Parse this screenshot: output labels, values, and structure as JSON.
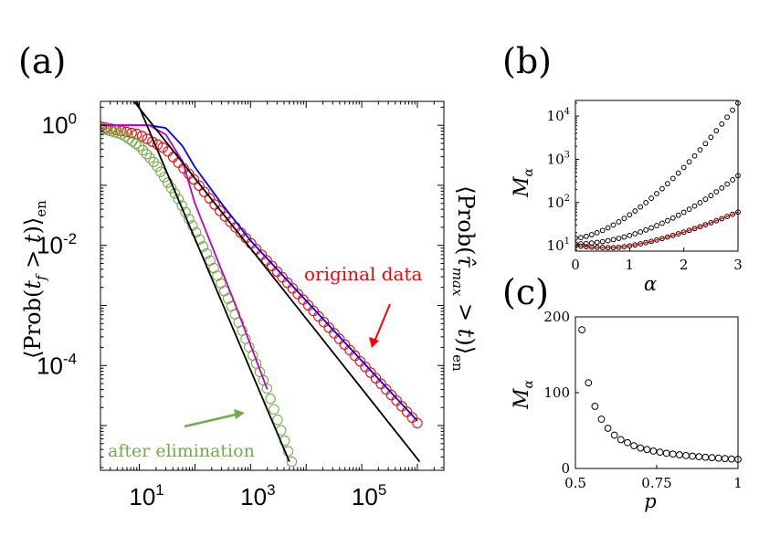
{
  "panels": {
    "a": "(a)",
    "b": "(b)",
    "c": "(c)"
  },
  "chart_data": [
    {
      "panel": "(a)",
      "type": "line",
      "xscale": "log",
      "yscale": "log",
      "xlim": [
        2,
        3000000
      ],
      "ylim": [
        1.8e-06,
        2.5
      ],
      "xticks": [
        10,
        1000,
        100000
      ],
      "xtick_labels": [
        {
          "base": "10",
          "exp": "1"
        },
        {
          "base": "10",
          "exp": "3"
        },
        {
          "base": "10",
          "exp": "5"
        }
      ],
      "yticks": [
        1,
        0.01,
        0.0001
      ],
      "ytick_labels": [
        {
          "base": "10",
          "exp": "0"
        },
        {
          "base": "10",
          "exp": "-2"
        },
        {
          "base": "10",
          "exp": "-4"
        }
      ],
      "ylabel_left": {
        "pre": "⟨Prob(",
        "var": "t",
        "sub": "f",
        "post": " > ",
        "var2": "t",
        "close": ")⟩",
        "subscript": "en"
      },
      "ylabel_right": {
        "pre": "⟨Prob(",
        "var": "τ̂",
        "sub": "max",
        "post": " > ",
        "var2": "t",
        "close": ")⟩",
        "subscript": "en"
      },
      "annotations": [
        {
          "text": "original data",
          "color": "#ff0000"
        },
        {
          "text": "after elimination",
          "color": "#70ad47"
        }
      ],
      "grid": false,
      "series": [
        {
          "style": "circles",
          "color": "#ff0000",
          "x_range": [
            2,
            1000000
          ],
          "count": 62,
          "y_curve": [
            [
              2,
              0.95
            ],
            [
              10,
              0.7
            ],
            [
              30,
              0.4
            ],
            [
              100,
              0.12
            ],
            [
              300,
              0.035
            ],
            [
              1000,
              0.011
            ],
            [
              10000,
              0.0011
            ],
            [
              100000,
              0.00011
            ],
            [
              1000000,
              1.1e-05
            ]
          ]
        },
        {
          "style": "circles",
          "color": "#70ad47",
          "x_range": [
            2,
            5500
          ],
          "count": 55,
          "y_curve": [
            [
              2,
              0.9
            ],
            [
              5,
              0.7
            ],
            [
              10,
              0.45
            ],
            [
              20,
              0.22
            ],
            [
              50,
              0.06
            ],
            [
              100,
              0.018
            ],
            [
              200,
              0.005
            ],
            [
              500,
              0.0008
            ],
            [
              1000,
              0.00018
            ],
            [
              2000,
              4e-05
            ],
            [
              5500,
              2.5e-06
            ]
          ]
        },
        {
          "style": "line",
          "color": "#0000ff",
          "points": [
            [
              2,
              1.0
            ],
            [
              15,
              1.0
            ],
            [
              30,
              0.9
            ],
            [
              60,
              0.45
            ],
            [
              100,
              0.2
            ],
            [
              300,
              0.05
            ],
            [
              1000,
              0.012
            ],
            [
              10000,
              0.0012
            ],
            [
              100000,
              0.00012
            ],
            [
              1000000,
              1.2e-05
            ]
          ]
        },
        {
          "style": "line",
          "color": "#c000c0",
          "points": [
            [
              2,
              1.0
            ],
            [
              15,
              1.0
            ],
            [
              30,
              0.7
            ],
            [
              60,
              0.25
            ],
            [
              100,
              0.05
            ],
            [
              200,
              0.01
            ],
            [
              500,
              0.0012
            ],
            [
              1000,
              0.00022
            ],
            [
              2000,
              4e-05
            ]
          ]
        },
        {
          "style": "line",
          "color": "#000000",
          "points": [
            [
              8,
              2.5
            ],
            [
              1100000,
              2.5e-06
            ]
          ]
        },
        {
          "style": "line",
          "color": "#000000",
          "points": [
            [
              9,
              2.5
            ],
            [
              5000,
              2.5e-06
            ]
          ]
        }
      ]
    },
    {
      "panel": "(b)",
      "type": "scatter",
      "yscale": "log",
      "xlim": [
        0,
        3
      ],
      "ylim": [
        7.5,
        23000
      ],
      "xticks": [
        0,
        1,
        2,
        3
      ],
      "xtick_labels": [
        "0",
        "1",
        "2",
        "3"
      ],
      "yticks": [
        10,
        100,
        1000,
        10000
      ],
      "ytick_labels": [
        {
          "base": "10",
          "exp": "1"
        },
        {
          "base": "10",
          "exp": "2"
        },
        {
          "base": "10",
          "exp": "3"
        },
        {
          "base": "10",
          "exp": "4"
        }
      ],
      "xlabel": "α",
      "ylabel": {
        "var": "M",
        "sub": "α"
      },
      "grid": false,
      "series": [
        {
          "style": "circles",
          "color": "#000000",
          "x_range": [
            0,
            3
          ],
          "count": 31,
          "y_start": 15,
          "y_end": 20000,
          "curvature": 1.6
        },
        {
          "style": "circles",
          "color": "#000000",
          "x_range": [
            0,
            3
          ],
          "count": 31,
          "y_start": 11,
          "y_end": 420,
          "curvature": 1.9
        },
        {
          "style": "circles",
          "color": "#000000",
          "x_range": [
            0,
            3
          ],
          "count": 31,
          "y_min": 9,
          "x_at_min": 0.7,
          "y_start": 10,
          "y_end": 60
        },
        {
          "style": "line",
          "color": "#ff0000",
          "x_range": [
            0,
            3
          ],
          "y_min": 9,
          "x_at_min": 0.7,
          "y_start": 10,
          "y_end": 60
        }
      ]
    },
    {
      "panel": "(c)",
      "type": "scatter",
      "xlim": [
        0.5,
        1
      ],
      "ylim": [
        0,
        200
      ],
      "xticks": [
        0.5,
        0.75,
        1
      ],
      "xtick_labels": [
        "0.5",
        "0.75",
        "1"
      ],
      "yticks": [
        0,
        100,
        200
      ],
      "ytick_labels": [
        "0",
        "100",
        "200"
      ],
      "xlabel": "p",
      "ylabel": {
        "var": "M",
        "sub": "α"
      },
      "grid": false,
      "series": [
        {
          "style": "circles",
          "color": "#000000",
          "x": [
            0.52,
            0.54,
            0.56,
            0.58,
            0.6,
            0.62,
            0.64,
            0.66,
            0.68,
            0.7,
            0.72,
            0.74,
            0.76,
            0.78,
            0.8,
            0.82,
            0.84,
            0.86,
            0.88,
            0.9,
            0.92,
            0.94,
            0.96,
            0.98,
            1.0
          ],
          "y": [
            183,
            113,
            82,
            65,
            53,
            44,
            38,
            34,
            30,
            27,
            25,
            23,
            21.5,
            20,
            19,
            18,
            17,
            16.2,
            15.5,
            14.8,
            14.2,
            13.6,
            13,
            12.5,
            12
          ]
        }
      ]
    }
  ]
}
